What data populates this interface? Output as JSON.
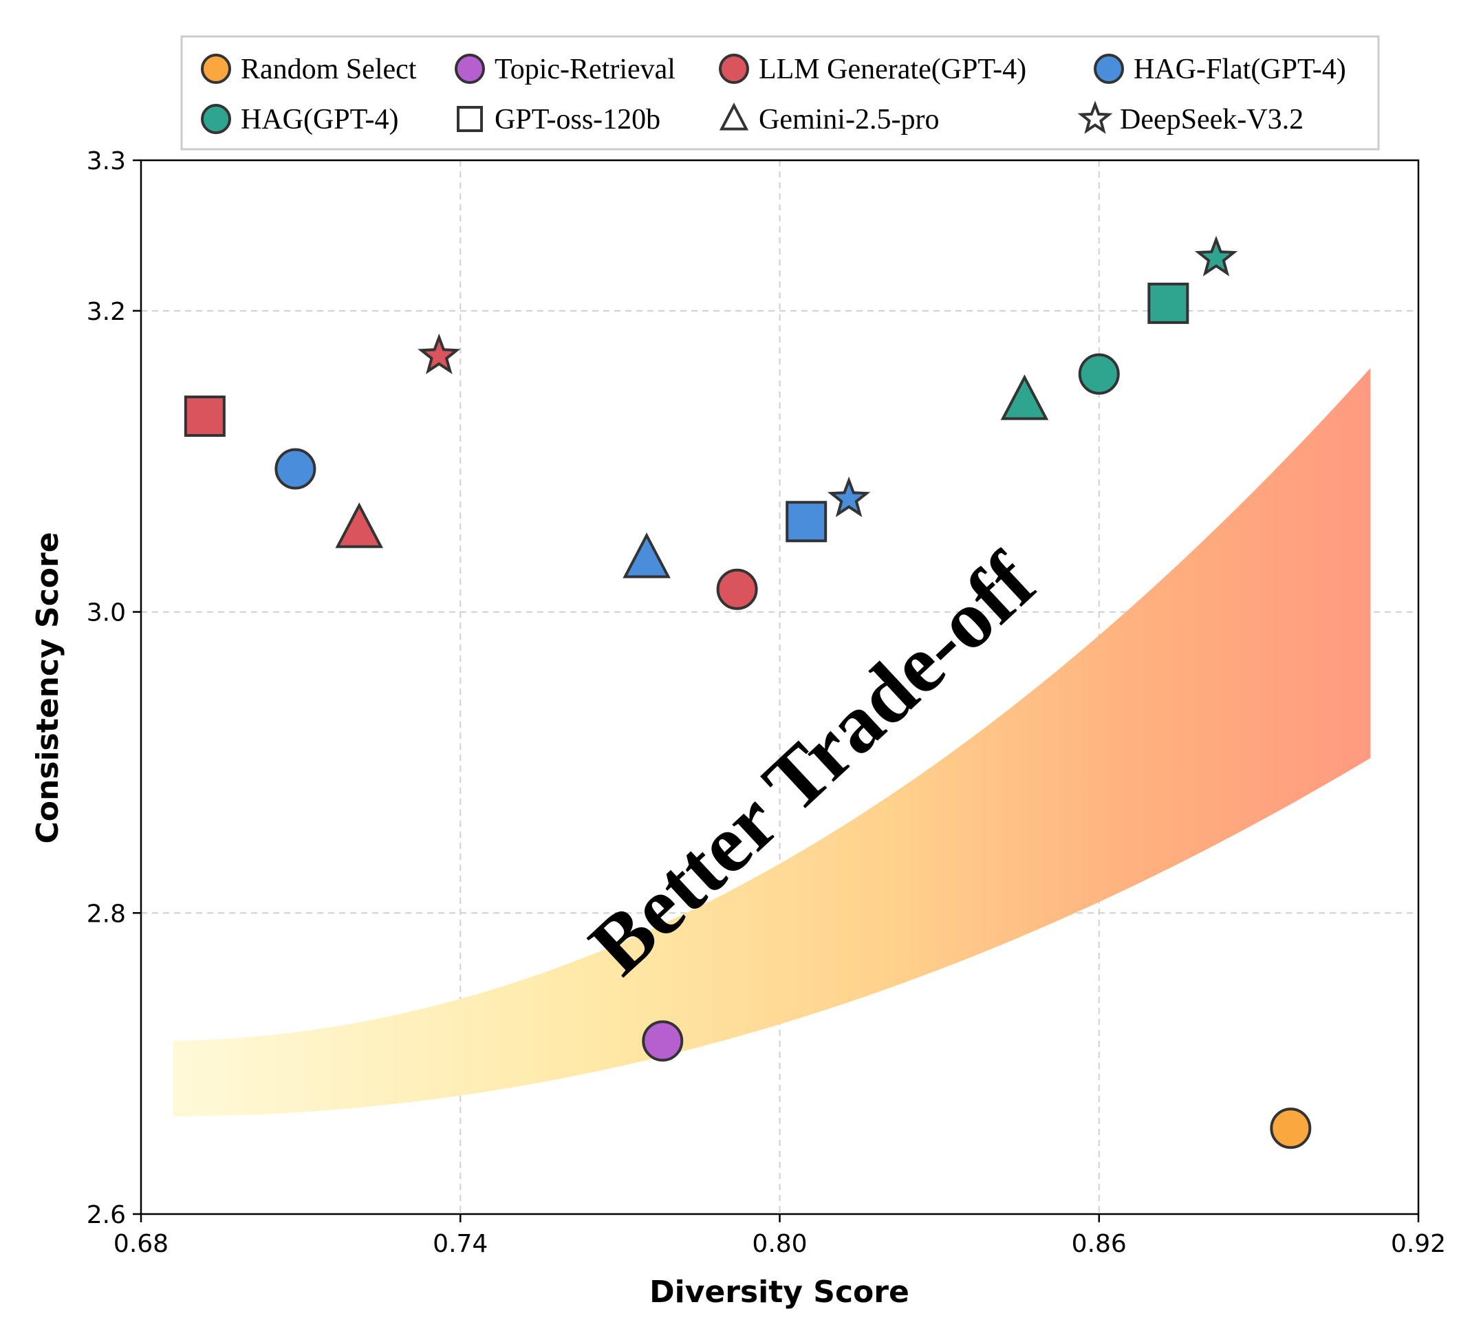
{
  "chart_data": {
    "type": "scatter",
    "xlabel": "Diversity Score",
    "ylabel": "Consistency Score",
    "xlim": [
      0.68,
      0.92
    ],
    "ylim": [
      2.6,
      3.3
    ],
    "xticks": [
      "0.68",
      "0.74",
      "0.80",
      "0.86",
      "0.92"
    ],
    "yticks": [
      "2.6",
      "2.8",
      "3.0",
      "3.2",
      "3.3"
    ],
    "grid": true,
    "legend_position": "top",
    "band_label": "Better Trade-off",
    "colors": {
      "random": "#F9A73E",
      "topic": "#B65FCF",
      "llm": "#D9545C",
      "hagflat": "#4A8EDB",
      "hag": "#2FA590",
      "outline": "#333333"
    },
    "methods": [
      {
        "name": "Random Select",
        "color": "#F9A73E"
      },
      {
        "name": "Topic-Retrieval",
        "color": "#B65FCF"
      },
      {
        "name": "LLM Generate(GPT-4)",
        "color": "#D9545C"
      },
      {
        "name": "HAG-Flat(GPT-4)",
        "color": "#4A8EDB"
      },
      {
        "name": "HAG(GPT-4)",
        "color": "#2FA590"
      }
    ],
    "models": [
      {
        "name": "GPT-oss-120b",
        "marker": "square"
      },
      {
        "name": "Gemini-2.5-pro",
        "marker": "triangle"
      },
      {
        "name": "DeepSeek-V3.2",
        "marker": "star"
      }
    ],
    "points": [
      {
        "series": "Random Select",
        "marker": "circle",
        "x": 0.896,
        "y": 2.657
      },
      {
        "series": "Topic-Retrieval",
        "marker": "circle",
        "x": 0.778,
        "y": 2.715
      },
      {
        "series": "LLM Generate(GPT-4)",
        "marker": "circle",
        "x": 0.792,
        "y": 3.015
      },
      {
        "series": "LLM Generate(GPT-4)",
        "marker": "square",
        "x": 0.692,
        "y": 3.13
      },
      {
        "series": "LLM Generate(GPT-4)",
        "marker": "triangle",
        "x": 0.721,
        "y": 3.055
      },
      {
        "series": "LLM Generate(GPT-4)",
        "marker": "star",
        "x": 0.736,
        "y": 3.17
      },
      {
        "series": "HAG-Flat(GPT-4)",
        "marker": "circle",
        "x": 0.709,
        "y": 3.095
      },
      {
        "series": "HAG-Flat(GPT-4)",
        "marker": "square",
        "x": 0.805,
        "y": 3.06
      },
      {
        "series": "HAG-Flat(GPT-4)",
        "marker": "triangle",
        "x": 0.775,
        "y": 3.035
      },
      {
        "series": "HAG-Flat(GPT-4)",
        "marker": "star",
        "x": 0.813,
        "y": 3.075
      },
      {
        "series": "HAG(GPT-4)",
        "marker": "circle",
        "x": 0.86,
        "y": 3.158
      },
      {
        "series": "HAG(GPT-4)",
        "marker": "square",
        "x": 0.873,
        "y": 3.205
      },
      {
        "series": "HAG(GPT-4)",
        "marker": "triangle",
        "x": 0.846,
        "y": 3.14
      },
      {
        "series": "HAG(GPT-4)",
        "marker": "star",
        "x": 0.882,
        "y": 3.235
      }
    ]
  }
}
